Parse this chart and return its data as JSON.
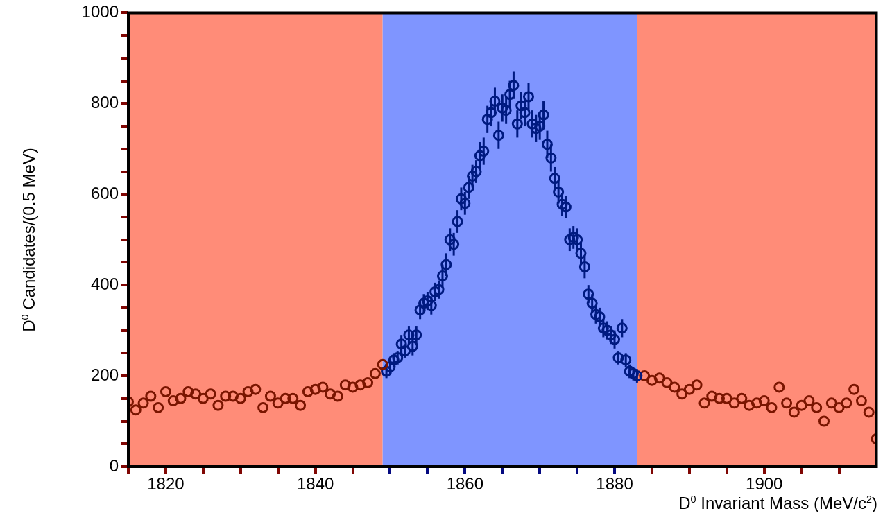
{
  "chart_data": {
    "type": "scatter",
    "xlabel": "D$^{0}$ Invariant Mass (MeV/c$^{2}$)",
    "ylabel": "D$^{0}$ Candidates/(0.5 MeV)",
    "marker": "circle",
    "xlim": [
      1815,
      1915
    ],
    "ylim": [
      0,
      1000
    ],
    "xticks": [
      {
        "value": 1815,
        "label": null
      },
      1820,
      {
        "value": 1825,
        "label": null
      },
      {
        "value": 1830,
        "label": null
      },
      {
        "value": 1835,
        "label": null
      },
      1840,
      {
        "value": 1845,
        "label": null
      },
      {
        "value": 1850,
        "label": null
      },
      {
        "value": 1855,
        "label": null
      },
      1860,
      {
        "value": 1865,
        "label": null
      },
      {
        "value": 1870,
        "label": null
      },
      {
        "value": 1875,
        "label": null
      },
      1880,
      {
        "value": 1885,
        "label": null
      },
      {
        "value": 1890,
        "label": null
      },
      {
        "value": 1895,
        "label": null
      },
      1900,
      {
        "value": 1905,
        "label": null
      },
      {
        "value": 1910,
        "label": null
      }
    ],
    "yticks": [
      0,
      {
        "value": 50,
        "label": null
      },
      {
        "value": 100,
        "label": null
      },
      {
        "value": 150,
        "label": null
      },
      200,
      {
        "value": 250,
        "label": null
      },
      {
        "value": 300,
        "label": null
      },
      {
        "value": 350,
        "label": null
      },
      400,
      {
        "value": 450,
        "label": null
      },
      {
        "value": 500,
        "label": null
      },
      {
        "value": 550,
        "label": null
      },
      600,
      {
        "value": 650,
        "label": null
      },
      {
        "value": 700,
        "label": null
      },
      {
        "value": 750,
        "label": null
      },
      800,
      {
        "value": 850,
        "label": null
      },
      {
        "value": 900,
        "label": null
      },
      {
        "value": 950,
        "label": null
      },
      1000
    ],
    "bands": [
      {
        "axis": "x",
        "from": 1815,
        "to": 1849,
        "color": "#ff8c78"
      },
      {
        "axis": "x",
        "from": 1849,
        "to": 1883,
        "color": "#7f95ff"
      },
      {
        "axis": "x",
        "from": 1883,
        "to": 1915,
        "color": "#ff8c78"
      }
    ],
    "series": [
      {
        "color": "#7a1500",
        "x": [
          1815,
          1816,
          1817,
          1818,
          1819,
          1820,
          1821,
          1822,
          1823,
          1824,
          1825,
          1826,
          1827,
          1828,
          1829,
          1830,
          1831,
          1832,
          1833,
          1834,
          1835,
          1836,
          1837,
          1838,
          1839,
          1840,
          1841,
          1842,
          1843,
          1844,
          1845,
          1846,
          1847,
          1848,
          1849
        ],
        "values": [
          143,
          125,
          140,
          155,
          130,
          165,
          145,
          150,
          165,
          160,
          150,
          160,
          135,
          155,
          155,
          150,
          165,
          170,
          130,
          155,
          140,
          150,
          150,
          135,
          165,
          170,
          175,
          160,
          155,
          180,
          175,
          180,
          185,
          205,
          225
        ]
      },
      {
        "color": "#001a80",
        "x": [
          1849.5,
          1850,
          1850.5,
          1851,
          1851.5,
          1852,
          1852.5,
          1853,
          1853.5,
          1854,
          1854.5,
          1855,
          1855.5,
          1856,
          1856.5,
          1857,
          1857.5,
          1858,
          1858.5,
          1859,
          1859.5,
          1860,
          1860.5,
          1861,
          1861.5,
          1862,
          1862.5,
          1863,
          1863.5,
          1864,
          1864.5,
          1865,
          1865.5,
          1866,
          1866.5,
          1867,
          1867.5,
          1868,
          1868.5,
          1869,
          1869.5,
          1870,
          1870.5,
          1871,
          1871.5,
          1872,
          1872.5,
          1873,
          1873.5,
          1874,
          1874.5,
          1875,
          1875.5,
          1876,
          1876.5,
          1877,
          1877.5,
          1878,
          1878.5,
          1879,
          1879.5,
          1880,
          1880.5,
          1881,
          1881.5,
          1882,
          1882.5,
          1883
        ],
        "values": [
          210,
          220,
          235,
          240,
          270,
          255,
          290,
          265,
          290,
          345,
          360,
          365,
          355,
          385,
          390,
          420,
          445,
          500,
          490,
          540,
          590,
          580,
          615,
          640,
          650,
          685,
          695,
          765,
          780,
          805,
          730,
          790,
          785,
          820,
          840,
          755,
          795,
          780,
          815,
          755,
          745,
          750,
          775,
          710,
          680,
          635,
          605,
          578,
          572,
          500,
          505,
          500,
          470,
          440,
          380,
          360,
          335,
          330,
          305,
          300,
          290,
          280,
          240,
          305,
          235,
          210,
          205,
          200
        ],
        "errors": [
          15,
          15,
          15,
          15,
          20,
          15,
          20,
          20,
          20,
          20,
          20,
          20,
          20,
          20,
          20,
          25,
          25,
          25,
          25,
          25,
          25,
          25,
          25,
          25,
          25,
          30,
          30,
          30,
          30,
          30,
          30,
          30,
          30,
          30,
          30,
          30,
          30,
          30,
          30,
          30,
          30,
          30,
          30,
          30,
          30,
          25,
          25,
          25,
          25,
          25,
          25,
          25,
          25,
          25,
          20,
          20,
          20,
          20,
          20,
          20,
          20,
          20,
          15,
          20,
          15,
          15,
          15,
          15
        ]
      },
      {
        "color": "#7a1500",
        "x": [
          1884,
          1885,
          1886,
          1887,
          1888,
          1889,
          1890,
          1891,
          1892,
          1893,
          1894,
          1895,
          1896,
          1897,
          1898,
          1899,
          1900,
          1901,
          1902,
          1903,
          1904,
          1905,
          1906,
          1907,
          1908,
          1909,
          1910,
          1911,
          1912,
          1913,
          1914,
          1915
        ],
        "values": [
          200,
          190,
          195,
          185,
          175,
          160,
          170,
          180,
          140,
          155,
          150,
          150,
          140,
          150,
          135,
          140,
          145,
          130,
          175,
          140,
          120,
          135,
          145,
          130,
          100,
          140,
          130,
          140,
          170,
          145,
          120,
          61
        ]
      }
    ]
  }
}
